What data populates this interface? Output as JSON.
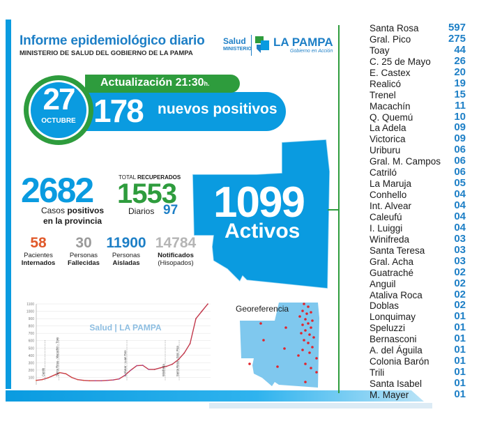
{
  "header": {
    "title": "Informe epidemiológico diario",
    "subtitle": "MINISTERIO DE SALUD DEL GOBIERNO DE LA PAMPA"
  },
  "logo": {
    "salud": "Salud",
    "ministerio": "MINISTERIO",
    "name": "LA PAMPA",
    "tagline": "Gobierno en Acción"
  },
  "date": {
    "day": "27",
    "month": "OCTUBRE"
  },
  "update": {
    "label": "Actualización 21:30",
    "suffix": "h."
  },
  "new_positives": {
    "count": "178",
    "label": "nuevos positivos"
  },
  "totals": {
    "cases_count": "2682",
    "cases_label_1": "Casos ",
    "cases_label_bold": "positivos",
    "cases_label_2": "en la provincia",
    "recovered_prefix": "TOTAL ",
    "recovered_bold": "RECUPERADOS",
    "recovered_count": "1553",
    "daily_label": "Diarios",
    "daily_count": "97"
  },
  "active": {
    "count": "1099",
    "label": "Activos"
  },
  "stats": [
    {
      "value": "58",
      "line1": "Pacientes",
      "line2": "Internados",
      "color": "#e0592a"
    },
    {
      "value": "30",
      "line1": "Personas",
      "line2": "Fallecidas",
      "color": "#9a9a9a"
    },
    {
      "value": "11900",
      "line1": "Personas",
      "line2": "Aisladas",
      "color": "#1d7fc6"
    },
    {
      "value": "14784",
      "line1": "Notificados",
      "line2": "(Hisopados)",
      "color": "#b5b5b5"
    }
  ],
  "geo": {
    "title": "Georeferencia"
  },
  "chart_data": {
    "type": "line",
    "y_ticks": [
      "1100",
      "1000",
      "900",
      "800",
      "700",
      "600",
      "500",
      "400",
      "300",
      "200",
      "100"
    ],
    "ylim": [
      0,
      1100
    ],
    "annotations": [
      "Catriló",
      "Santa Rosa - Macachín - Toay",
      "L.Alvear - Luan Toro",
      "Winifreda",
      "Santa Rosa - Gral. Pico"
    ],
    "series": [
      {
        "values": [
          60,
          70,
          95,
          130,
          165,
          150,
          100,
          70,
          60,
          55,
          55,
          55,
          60,
          65,
          80,
          130,
          200,
          260,
          265,
          210,
          210,
          230,
          250,
          280,
          340,
          430,
          560,
          900,
          1000,
          1099
        ]
      }
    ]
  },
  "localities": [
    {
      "name": "Santa Rosa",
      "count": "597"
    },
    {
      "name": "Gral. Pico",
      "count": "275"
    },
    {
      "name": "Toay",
      "count": "44"
    },
    {
      "name": "C. 25 de Mayo",
      "count": "26"
    },
    {
      "name": "E. Castex",
      "count": "20"
    },
    {
      "name": "Realicó",
      "count": "19"
    },
    {
      "name": "Trenel",
      "count": "15"
    },
    {
      "name": "Macachín",
      "count": "11"
    },
    {
      "name": "Q. Quemú",
      "count": "10"
    },
    {
      "name": "La Adela",
      "count": "09"
    },
    {
      "name": "Victorica",
      "count": "09"
    },
    {
      "name": "Uriburu",
      "count": "06"
    },
    {
      "name": "Gral. M. Campos",
      "count": "06"
    },
    {
      "name": "Catriló",
      "count": "06"
    },
    {
      "name": "La Maruja",
      "count": "05"
    },
    {
      "name": "Conhello",
      "count": "04"
    },
    {
      "name": "Int. Alvear",
      "count": "04"
    },
    {
      "name": "Caleufú",
      "count": "04"
    },
    {
      "name": "I. Luiggi",
      "count": "04"
    },
    {
      "name": "Winifreda",
      "count": "03"
    },
    {
      "name": "Santa Teresa",
      "count": "03"
    },
    {
      "name": "Gral. Acha",
      "count": "03"
    },
    {
      "name": "Guatraché",
      "count": "02"
    },
    {
      "name": "Anguil",
      "count": "02"
    },
    {
      "name": "Ataliva Roca",
      "count": "02"
    },
    {
      "name": "Doblas",
      "count": "02"
    },
    {
      "name": "Lonquimay",
      "count": "01"
    },
    {
      "name": "Speluzzi",
      "count": "01"
    },
    {
      "name": "Bernasconi",
      "count": "01"
    },
    {
      "name": "A. del Águila",
      "count": "01"
    },
    {
      "name": "Colonia Barón",
      "count": "01"
    },
    {
      "name": "Trili",
      "count": "01"
    },
    {
      "name": "Santa Isabel",
      "count": "01"
    },
    {
      "name": "M. Mayer",
      "count": "01"
    }
  ],
  "colors": {
    "blue": "#0a9be0",
    "green": "#2e9c3d",
    "dark_blue": "#1d7fc6"
  }
}
